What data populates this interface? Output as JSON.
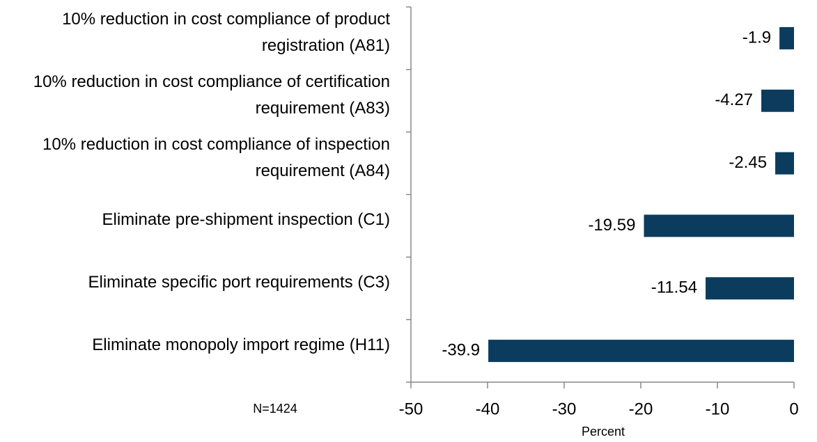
{
  "chart_data": {
    "type": "barh",
    "categories": [
      "10% reduction in cost compliance of product registration (A81)",
      "10% reduction in cost compliance of certification requirement (A83)",
      "10% reduction in cost compliance of inspection requirement (A84)",
      "Eliminate pre-shipment inspection (C1)",
      "Eliminate specific port requirements (C3)",
      "Eliminate monopoly import regime (H11)"
    ],
    "values": [
      -1.9,
      -4.27,
      -2.45,
      -19.59,
      -11.54,
      -39.9
    ],
    "color": "#0b3c5d",
    "xlim": [
      -50,
      0
    ],
    "xticks": [
      -50,
      -40,
      -30,
      -20,
      -10,
      0
    ],
    "xlabel": "Percent",
    "annotation": "N=1424"
  }
}
